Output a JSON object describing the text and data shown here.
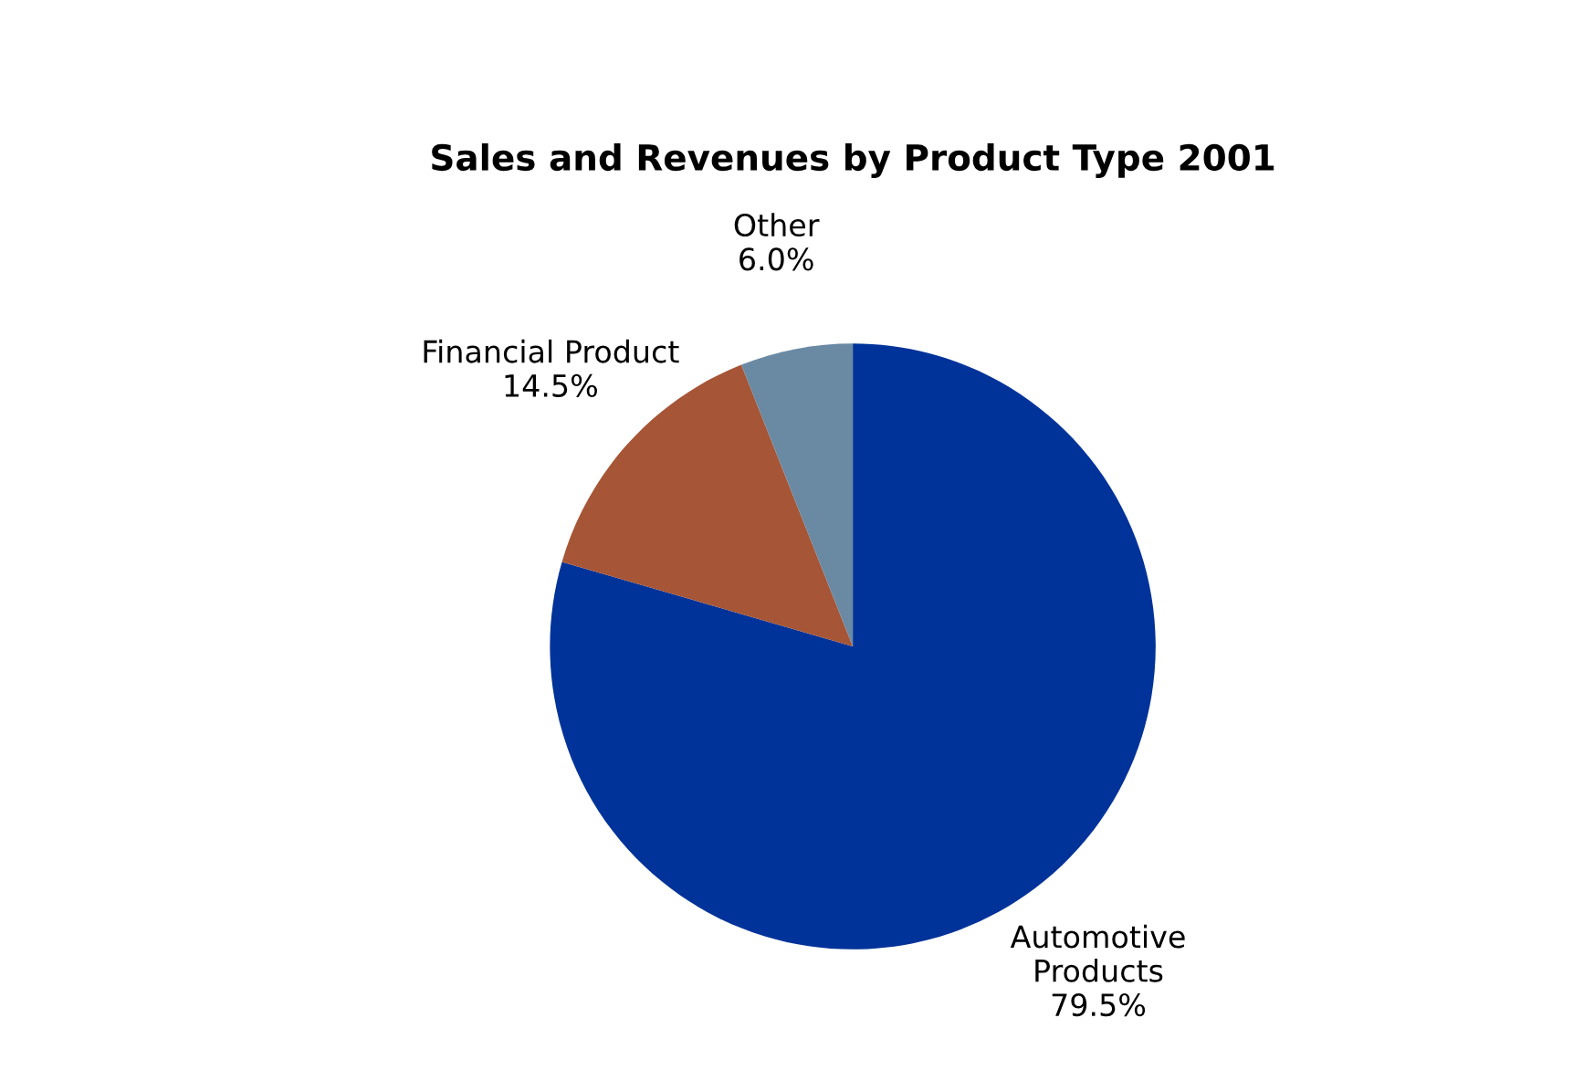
{
  "chart_data": {
    "type": "pie",
    "title": "Sales and Revenues by Product Type 2001",
    "categories": [
      "Automotive\nProducts",
      "Financial Product",
      "Other"
    ],
    "values": [
      79.5,
      14.5,
      6.0
    ],
    "value_labels": [
      "79.5%",
      "14.5%",
      "6.0%"
    ],
    "colors": [
      "#003399",
      "#a65536",
      "#6a89a3"
    ],
    "legend": false
  }
}
